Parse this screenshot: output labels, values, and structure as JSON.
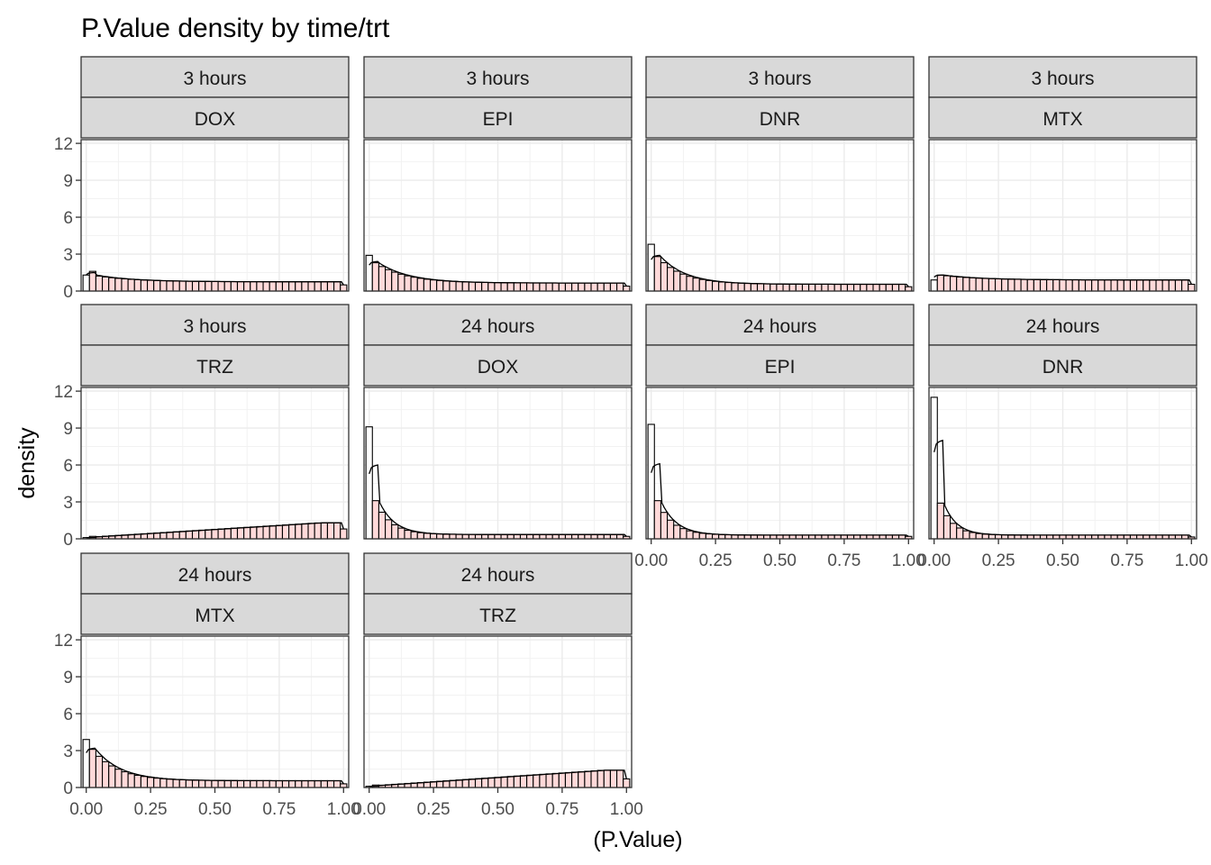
{
  "chart_data": {
    "type": "histogram",
    "title": "P.Value density by time/trt",
    "xlabel": "(P.Value)",
    "ylabel": "density",
    "xlim": [
      -0.02,
      1.02
    ],
    "ylim": [
      0,
      12.3
    ],
    "x_ticks": [
      0,
      0.25,
      0.5,
      0.75,
      1
    ],
    "x_tick_labels": [
      "0.00",
      "0.25",
      "0.50",
      "0.75",
      "1.00"
    ],
    "y_ticks": [
      0,
      3,
      6,
      9,
      12
    ],
    "y_tick_labels": [
      "0",
      "3",
      "6",
      "9",
      "12"
    ],
    "bin_width": 0.025,
    "grid": true,
    "fill_color": "#ffd9d9",
    "outline_color": "#000000",
    "facets": [
      {
        "time": "3 hours",
        "trt": "DOX",
        "first_bin": 1.3,
        "second_bin": 1.6,
        "density_peak": 1.5,
        "start_level": 1.3,
        "end_level": 0.75,
        "last_bin": 0.5,
        "decay": 0.15
      },
      {
        "time": "3 hours",
        "trt": "EPI",
        "first_bin": 2.9,
        "second_bin": 2.3,
        "density_peak": 2.4,
        "start_level": 2.3,
        "end_level": 0.65,
        "last_bin": 0.4,
        "decay": 0.12
      },
      {
        "time": "3 hours",
        "trt": "DNR",
        "first_bin": 3.8,
        "second_bin": 2.8,
        "density_peak": 2.9,
        "start_level": 2.8,
        "end_level": 0.55,
        "last_bin": 0.35,
        "decay": 0.1
      },
      {
        "time": "3 hours",
        "trt": "MTX",
        "first_bin": 0.9,
        "second_bin": 1.3,
        "density_peak": 1.3,
        "start_level": 1.3,
        "end_level": 0.9,
        "last_bin": 0.55,
        "decay": 0.15
      },
      {
        "time": "3 hours",
        "trt": "TRZ",
        "first_bin": 0.1,
        "second_bin": 0.2,
        "density_peak": 0.1,
        "start_level": 0.1,
        "end_level": 1.3,
        "last_bin": 0.8,
        "decay": 0.0
      },
      {
        "time": "24 hours",
        "trt": "DOX",
        "first_bin": 9.1,
        "second_bin": 3.1,
        "density_peak": 6.0,
        "start_level": 3.1,
        "end_level": 0.35,
        "last_bin": 0.2,
        "decay": 0.06
      },
      {
        "time": "24 hours",
        "trt": "EPI",
        "first_bin": 9.3,
        "second_bin": 3.1,
        "density_peak": 6.1,
        "start_level": 3.1,
        "end_level": 0.3,
        "last_bin": 0.2,
        "decay": 0.06
      },
      {
        "time": "24 hours",
        "trt": "DNR",
        "first_bin": 11.5,
        "second_bin": 2.9,
        "density_peak": 8.0,
        "start_level": 2.9,
        "end_level": 0.3,
        "last_bin": 0.15,
        "decay": 0.05
      },
      {
        "time": "24 hours",
        "trt": "MTX",
        "first_bin": 3.9,
        "second_bin": 3.1,
        "density_peak": 3.2,
        "start_level": 3.1,
        "end_level": 0.55,
        "last_bin": 0.3,
        "decay": 0.1
      },
      {
        "time": "24 hours",
        "trt": "TRZ",
        "first_bin": 0.1,
        "second_bin": 0.2,
        "density_peak": 0.1,
        "start_level": 0.1,
        "end_level": 1.4,
        "last_bin": 0.7,
        "decay": 0.0
      }
    ]
  }
}
